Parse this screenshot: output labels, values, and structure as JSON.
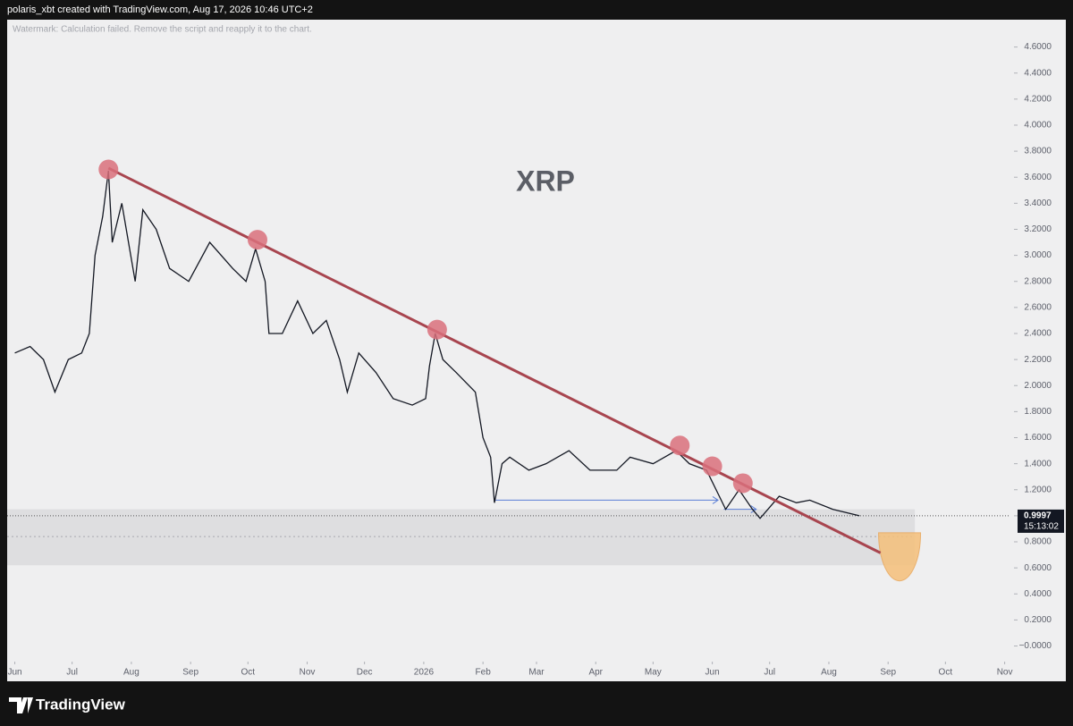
{
  "header": {
    "text": "polaris_xbt created with TradingView.com, Aug 17, 2026 10:46 UTC+2"
  },
  "chart_data": {
    "type": "line",
    "title": "XRP",
    "watermark": "Watermark: Calculation failed. Remove the script and reapply it to the chart.",
    "x": [
      0,
      8,
      15,
      21,
      28,
      35,
      39,
      42,
      46,
      49,
      51,
      56,
      63,
      67,
      74,
      81,
      91,
      102,
      114,
      121,
      126,
      131,
      133,
      140,
      148,
      156,
      163,
      170,
      174,
      180,
      189,
      198,
      208,
      215,
      217,
      220,
      224,
      231,
      241,
      245,
      249,
      251,
      255,
      259,
      269,
      278,
      290,
      301,
      315,
      322,
      334,
      346,
      353,
      362,
      367,
      372,
      379,
      386,
      390,
      400,
      409,
      416,
      428,
      442
    ],
    "series": [
      {
        "color": "#131722",
        "values": [
          2.25,
          2.3,
          2.2,
          1.95,
          2.2,
          2.25,
          2.4,
          3.0,
          3.3,
          3.65,
          3.1,
          3.4,
          2.8,
          3.35,
          3.2,
          2.9,
          2.8,
          3.1,
          2.9,
          2.8,
          3.05,
          2.8,
          2.4,
          2.4,
          2.65,
          2.4,
          2.5,
          2.2,
          1.95,
          2.25,
          2.1,
          1.9,
          1.85,
          1.9,
          2.15,
          2.4,
          2.2,
          2.1,
          1.95,
          1.6,
          1.45,
          1.1,
          1.4,
          1.45,
          1.35,
          1.4,
          1.5,
          1.35,
          1.35,
          1.45,
          1.4,
          1.5,
          1.4,
          1.35,
          1.2,
          1.05,
          1.2,
          1.05,
          0.98,
          1.15,
          1.1,
          1.12,
          1.05,
          0.9997
        ]
      }
    ],
    "xlim": [
      -4,
      521
    ],
    "xticks": [
      {
        "value": 0,
        "label": "Jun"
      },
      {
        "value": 30,
        "label": "Jul"
      },
      {
        "value": 61,
        "label": "Aug"
      },
      {
        "value": 92,
        "label": "Sep"
      },
      {
        "value": 122,
        "label": "Oct"
      },
      {
        "value": 153,
        "label": "Nov"
      },
      {
        "value": 183,
        "label": "Dec"
      },
      {
        "value": 214,
        "label": "2026"
      },
      {
        "value": 245,
        "label": "Feb"
      },
      {
        "value": 273,
        "label": "Mar"
      },
      {
        "value": 304,
        "label": "Apr"
      },
      {
        "value": 334,
        "label": "May"
      },
      {
        "value": 365,
        "label": "Jun"
      },
      {
        "value": 395,
        "label": "Jul"
      },
      {
        "value": 426,
        "label": "Aug"
      },
      {
        "value": 457,
        "label": "Sep"
      },
      {
        "value": 487,
        "label": "Oct"
      },
      {
        "value": 518,
        "label": "Nov"
      }
    ],
    "ylim": [
      -0.12,
      4.81
    ],
    "yticks": [
      {
        "value": 0,
        "label": "−0.0000"
      },
      {
        "value": 0.2,
        "label": "0.2000"
      },
      {
        "value": 0.4,
        "label": "0.4000"
      },
      {
        "value": 0.6,
        "label": "0.6000"
      },
      {
        "value": 0.8,
        "label": "0.8000"
      },
      {
        "value": 1.0,
        "label": "1.0000"
      },
      {
        "value": 1.2,
        "label": "1.2000"
      },
      {
        "value": 1.4,
        "label": "1.4000"
      },
      {
        "value": 1.6,
        "label": "1.6000"
      },
      {
        "value": 1.8,
        "label": "1.8000"
      },
      {
        "value": 2.0,
        "label": "2.0000"
      },
      {
        "value": 2.2,
        "label": "2.2000"
      },
      {
        "value": 2.4,
        "label": "2.4000"
      },
      {
        "value": 2.6,
        "label": "2.6000"
      },
      {
        "value": 2.8,
        "label": "2.8000"
      },
      {
        "value": 3.0,
        "label": "3.0000"
      },
      {
        "value": 3.2,
        "label": "3.2000"
      },
      {
        "value": 3.4,
        "label": "3.4000"
      },
      {
        "value": 3.6,
        "label": "3.6000"
      },
      {
        "value": 3.8,
        "label": "3.8000"
      },
      {
        "value": 4.0,
        "label": "4.0000"
      },
      {
        "value": 4.2,
        "label": "4.2000"
      },
      {
        "value": 4.4,
        "label": "4.4000"
      },
      {
        "value": 4.6,
        "label": "4.6000"
      }
    ],
    "current_price": 0.9997,
    "countdown": "15:13:02",
    "trendline": {
      "x": [
        49,
        453
      ],
      "y": [
        3.67,
        0.715
      ],
      "color": "#a8454f"
    },
    "touches": {
      "x": [
        49,
        127,
        221,
        348,
        365,
        381
      ],
      "y": [
        3.66,
        3.12,
        2.43,
        1.54,
        1.38,
        1.25
      ],
      "color": "#d9707b"
    },
    "zone": {
      "x": [
        -4,
        471
      ],
      "y": [
        1.05,
        0.62
      ],
      "mid": 0.84,
      "color": "#d9d9dc"
    },
    "target": {
      "x": [
        452,
        474
      ],
      "y": [
        0.87,
        0.5
      ],
      "color": "#f5c07a"
    },
    "arrows": [
      {
        "x": [
          251,
          368
        ],
        "y": 1.12
      },
      {
        "x": [
          371,
          388
        ],
        "y": 1.05
      }
    ],
    "arrow_color": "#5b7fd6"
  },
  "footer": {
    "brand": "TradingView"
  }
}
